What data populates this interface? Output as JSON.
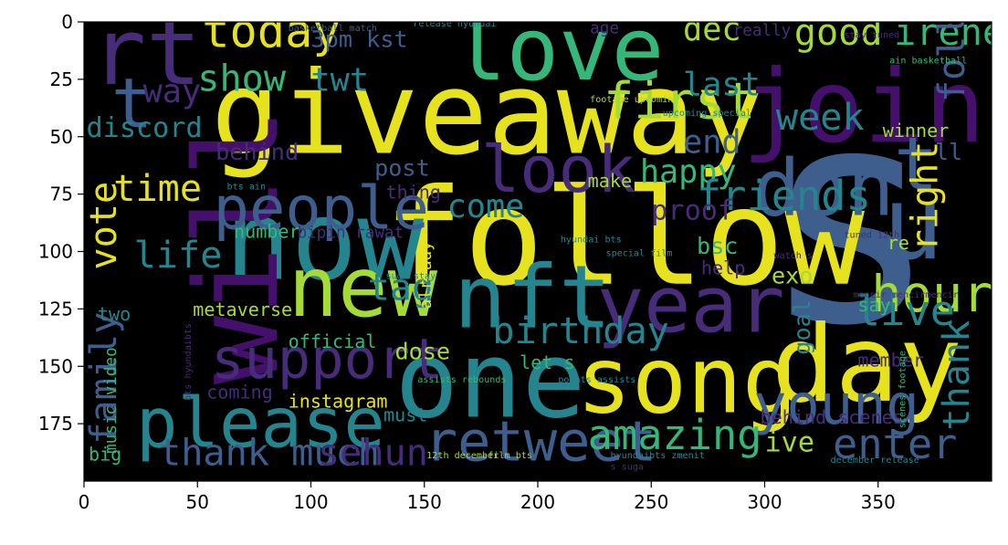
{
  "figure": {
    "x_ticks": [
      "0",
      "50",
      "100",
      "150",
      "200",
      "250",
      "300",
      "350"
    ],
    "y_ticks": [
      "0",
      "25",
      "50",
      "75",
      "100",
      "125",
      "150",
      "175"
    ],
    "x_tick_values": [
      0,
      50,
      100,
      150,
      200,
      250,
      300,
      350
    ],
    "y_tick_values": [
      0,
      25,
      50,
      75,
      100,
      125,
      150,
      175
    ],
    "xlim": [
      0,
      400
    ],
    "ylim": [
      200,
      0
    ],
    "background_color": "#000000",
    "palette": {
      "yellow": "#e6e31e",
      "lime": "#a5db36",
      "teal": "#25858e",
      "green": "#35b779",
      "blue": "#3e5e8d",
      "indigo": "#472c7a",
      "purple": "#45106b"
    }
  },
  "wordcloud": {
    "words": [
      {
        "text": "s",
        "x": 298,
        "y": 130,
        "size": 130,
        "color": "blue"
      },
      {
        "text": "follow",
        "x": 132,
        "y": 114,
        "size": 58,
        "color": "yellow"
      },
      {
        "text": "giveaway",
        "x": 56,
        "y": 57,
        "size": 50,
        "color": "yellow"
      },
      {
        "text": "now",
        "x": 62,
        "y": 112,
        "size": 48,
        "color": "teal"
      },
      {
        "text": "will",
        "x": 85,
        "y": 158,
        "size": 50,
        "color": "purple",
        "rot": -90
      },
      {
        "text": "one",
        "x": 137,
        "y": 172,
        "size": 46,
        "color": "teal"
      },
      {
        "text": "day",
        "x": 303,
        "y": 165,
        "size": 46,
        "color": "yellow"
      },
      {
        "text": "u",
        "x": 352,
        "y": 103,
        "size": 44,
        "color": "blue"
      },
      {
        "text": "join",
        "x": 290,
        "y": 52,
        "size": 44,
        "color": "purple"
      },
      {
        "text": "song",
        "x": 217,
        "y": 170,
        "size": 40,
        "color": "yellow"
      },
      {
        "text": "nft",
        "x": 163,
        "y": 133,
        "size": 38,
        "color": "teal"
      },
      {
        "text": "new",
        "x": 90,
        "y": 128,
        "size": 36,
        "color": "lime"
      },
      {
        "text": "please",
        "x": 23,
        "y": 185,
        "size": 30,
        "color": "teal"
      },
      {
        "text": "rt",
        "x": 3,
        "y": 27,
        "size": 40,
        "color": "indigo"
      },
      {
        "text": "love",
        "x": 163,
        "y": 25,
        "size": 38,
        "color": "green"
      },
      {
        "text": "year",
        "x": 226,
        "y": 135,
        "size": 34,
        "color": "indigo"
      },
      {
        "text": "don",
        "x": 295,
        "y": 84,
        "size": 34,
        "color": "blue"
      },
      {
        "text": "t",
        "x": 12,
        "y": 46,
        "size": 30,
        "color": "blue"
      },
      {
        "text": "t",
        "x": 357,
        "y": 73,
        "size": 32,
        "color": "blue"
      },
      {
        "text": "look",
        "x": 175,
        "y": 74,
        "size": 28,
        "color": "indigo"
      },
      {
        "text": "people",
        "x": 57,
        "y": 90,
        "size": 26,
        "color": "blue"
      },
      {
        "text": "retweet",
        "x": 150,
        "y": 191,
        "size": 24,
        "color": "blue"
      },
      {
        "text": "support",
        "x": 56,
        "y": 155,
        "size": 24,
        "color": "indigo"
      },
      {
        "text": "young",
        "x": 295,
        "y": 175,
        "size": 24,
        "color": "blue"
      },
      {
        "text": "first",
        "x": 229,
        "y": 42,
        "size": 22,
        "color": "lime"
      },
      {
        "text": "hour",
        "x": 347,
        "y": 126,
        "size": 22,
        "color": "lime"
      },
      {
        "text": "today",
        "x": 52,
        "y": 11,
        "size": 20,
        "color": "yellow"
      },
      {
        "text": "good",
        "x": 313,
        "y": 10,
        "size": 16,
        "color": "lime"
      },
      {
        "text": "irene",
        "x": 357,
        "y": 10,
        "size": 16,
        "color": "green"
      },
      {
        "text": "dec",
        "x": 264,
        "y": 8,
        "size": 14,
        "color": "lime"
      },
      {
        "text": "3pm kst",
        "x": 100,
        "y": 11,
        "size": 10,
        "color": "blue"
      },
      {
        "text": "show",
        "x": 50,
        "y": 30,
        "size": 16,
        "color": "green"
      },
      {
        "text": "twt",
        "x": 100,
        "y": 30,
        "size": 14,
        "color": "teal"
      },
      {
        "text": "way",
        "x": 26,
        "y": 35,
        "size": 14,
        "color": "indigo"
      },
      {
        "text": "discord",
        "x": 1,
        "y": 50,
        "size": 12,
        "color": "teal"
      },
      {
        "text": "last",
        "x": 264,
        "y": 32,
        "size": 14,
        "color": "teal"
      },
      {
        "text": "week",
        "x": 305,
        "y": 47,
        "size": 16,
        "color": "teal"
      },
      {
        "text": "end",
        "x": 264,
        "y": 57,
        "size": 14,
        "color": "blue"
      },
      {
        "text": "happy",
        "x": 245,
        "y": 70,
        "size": 14,
        "color": "green"
      },
      {
        "text": "follower",
        "x": 388,
        "y": 35,
        "size": 16,
        "color": "blue",
        "rot": -90
      },
      {
        "text": "time",
        "x": 13,
        "y": 78,
        "size": 16,
        "color": "yellow"
      },
      {
        "text": "come",
        "x": 160,
        "y": 85,
        "size": 14,
        "color": "teal"
      },
      {
        "text": "friends",
        "x": 270,
        "y": 82,
        "size": 18,
        "color": "teal"
      },
      {
        "text": "proof",
        "x": 250,
        "y": 86,
        "size": 12,
        "color": "indigo"
      },
      {
        "text": "post",
        "x": 128,
        "y": 67,
        "size": 10,
        "color": "blue"
      },
      {
        "text": "behind",
        "x": 58,
        "y": 60,
        "size": 10,
        "color": "indigo"
      },
      {
        "text": "ll",
        "x": 375,
        "y": 60,
        "size": 10,
        "color": "blue"
      },
      {
        "text": "make",
        "x": 222,
        "y": 72,
        "size": 8,
        "color": "lime"
      },
      {
        "text": "number",
        "x": 66,
        "y": 94,
        "size": 8,
        "color": "green"
      },
      {
        "text": "bipin rawat",
        "x": 94,
        "y": 94,
        "size": 7,
        "color": "indigo"
      },
      {
        "text": "vote",
        "x": 14,
        "y": 108,
        "size": 16,
        "color": "yellow",
        "rot": -90
      },
      {
        "text": "life",
        "x": 22,
        "y": 107,
        "size": 16,
        "color": "teal"
      },
      {
        "text": "right",
        "x": 376,
        "y": 100,
        "size": 16,
        "color": "yellow",
        "rot": -90
      },
      {
        "text": "bsc",
        "x": 270,
        "y": 101,
        "size": 10,
        "color": "green"
      },
      {
        "text": "help",
        "x": 272,
        "y": 110,
        "size": 8,
        "color": "indigo"
      },
      {
        "text": "tag",
        "x": 125,
        "y": 121,
        "size": 16,
        "color": "teal"
      },
      {
        "text": "live",
        "x": 340,
        "y": 132,
        "size": 18,
        "color": "teal"
      },
      {
        "text": "birthday",
        "x": 180,
        "y": 140,
        "size": 16,
        "color": "teal"
      },
      {
        "text": "metaverse",
        "x": 48,
        "y": 128,
        "size": 8,
        "color": "lime"
      },
      {
        "text": "family",
        "x": 14,
        "y": 184,
        "size": 16,
        "color": "blue",
        "rot": -90
      },
      {
        "text": "official",
        "x": 90,
        "y": 142,
        "size": 8,
        "color": "green"
      },
      {
        "text": "goal",
        "x": 320,
        "y": 145,
        "size": 10,
        "color": "teal",
        "rot": -90
      },
      {
        "text": "exo",
        "x": 303,
        "y": 114,
        "size": 10,
        "color": "lime"
      },
      {
        "text": "say",
        "x": 341,
        "y": 126,
        "size": 8,
        "color": "green"
      },
      {
        "text": "member",
        "x": 341,
        "y": 150,
        "size": 8,
        "color": "indigo"
      },
      {
        "text": "dose",
        "x": 137,
        "y": 147,
        "size": 10,
        "color": "lime"
      },
      {
        "text": "let s",
        "x": 192,
        "y": 151,
        "size": 8,
        "color": "green"
      },
      {
        "text": "instagram",
        "x": 90,
        "y": 168,
        "size": 8,
        "color": "yellow"
      },
      {
        "text": "coming",
        "x": 54,
        "y": 164,
        "size": 8,
        "color": "indigo"
      },
      {
        "text": "thank",
        "x": 390,
        "y": 178,
        "size": 16,
        "color": "teal",
        "rot": -90
      },
      {
        "text": "must",
        "x": 132,
        "y": 174,
        "size": 8,
        "color": "teal"
      },
      {
        "text": "thank much",
        "x": 33,
        "y": 193,
        "size": 16,
        "color": "blue"
      },
      {
        "text": "sehun",
        "x": 103,
        "y": 193,
        "size": 16,
        "color": "indigo"
      },
      {
        "text": "amazing",
        "x": 222,
        "y": 186,
        "size": 18,
        "color": "green"
      },
      {
        "text": "ive",
        "x": 300,
        "y": 187,
        "size": 12,
        "color": "lime"
      },
      {
        "text": "enter",
        "x": 330,
        "y": 190,
        "size": 18,
        "color": "blue"
      },
      {
        "text": "behind scenes",
        "x": 298,
        "y": 175,
        "size": 8,
        "color": "indigo"
      },
      {
        "text": "music video",
        "x": 14,
        "y": 188,
        "size": 7,
        "color": "green",
        "rot": -90
      },
      {
        "text": "big",
        "x": 2,
        "y": 191,
        "size": 8,
        "color": "green"
      },
      {
        "text": "winner",
        "x": 352,
        "y": 50,
        "size": 8,
        "color": "lime"
      },
      {
        "text": "re",
        "x": 354,
        "y": 99,
        "size": 8,
        "color": "lime"
      },
      {
        "text": "thing",
        "x": 133,
        "y": 77,
        "size": 8,
        "color": "indigo"
      },
      {
        "text": "already",
        "x": 153,
        "y": 125,
        "size": 7,
        "color": "yellow",
        "rot": -90
      },
      {
        "text": "two",
        "x": 6,
        "y": 130,
        "size": 8,
        "color": "teal"
      },
      {
        "text": "age",
        "x": 223,
        "y": 5,
        "size": 7,
        "color": "indigo"
      },
      {
        "text": "really",
        "x": 286,
        "y": 6,
        "size": 7,
        "color": "indigo"
      },
      {
        "text": "release hyundai",
        "x": 145,
        "y": 2,
        "size": 4,
        "color": "teal"
      },
      {
        "text": "basketball match",
        "x": 90,
        "y": 4,
        "size": 4,
        "color": "blue"
      },
      {
        "text": "footage upcoming",
        "x": 223,
        "y": 35,
        "size": 4,
        "color": "lime"
      },
      {
        "text": "upcoming special",
        "x": 255,
        "y": 41,
        "size": 4,
        "color": "teal"
      },
      {
        "text": "assists rebounds",
        "x": 147,
        "y": 157,
        "size": 4,
        "color": "green"
      },
      {
        "text": "points assists",
        "x": 209,
        "y": 157,
        "size": 4,
        "color": "teal"
      },
      {
        "text": "12th december",
        "x": 151,
        "y": 190,
        "size": 4,
        "color": "lime"
      },
      {
        "text": "film bts",
        "x": 178,
        "y": 190,
        "size": 4,
        "color": "lime"
      },
      {
        "text": "hyundaibts zmenit",
        "x": 232,
        "y": 190,
        "size": 4,
        "color": "teal"
      },
      {
        "text": "december release",
        "x": 329,
        "y": 192,
        "size": 4,
        "color": "teal"
      },
      {
        "text": "scenes footage",
        "x": 362,
        "y": 177,
        "size": 4,
        "color": "green",
        "rot": -90
      },
      {
        "text": "stay tuned",
        "x": 335,
        "y": 7,
        "size": 4,
        "color": "indigo"
      },
      {
        "text": "ain basketball",
        "x": 355,
        "y": 18,
        "size": 4,
        "color": "green"
      },
      {
        "text": "bts ain",
        "x": 63,
        "y": 73,
        "size": 4,
        "color": "teal"
      },
      {
        "text": "suga stay",
        "x": 133,
        "y": 112,
        "size": 4,
        "color": "teal"
      },
      {
        "text": "tuned 12th",
        "x": 335,
        "y": 94,
        "size": 4,
        "color": "indigo"
      },
      {
        "text": "watch s",
        "x": 304,
        "y": 103,
        "size": 4,
        "color": "indigo"
      },
      {
        "text": "special film",
        "x": 230,
        "y": 102,
        "size": 4,
        "color": "teal"
      },
      {
        "text": "s suga",
        "x": 232,
        "y": 195,
        "size": 4,
        "color": "indigo"
      },
      {
        "text": "hyundai bts",
        "x": 210,
        "y": 96,
        "size": 4,
        "color": "teal"
      },
      {
        "text": "bts hyundaibts",
        "x": 47,
        "y": 165,
        "size": 4,
        "color": "indigo",
        "rot": -90
      },
      {
        "text": "mencir mencirmencir",
        "x": 339,
        "y": 120,
        "size": 4,
        "color": "indigo"
      }
    ]
  }
}
